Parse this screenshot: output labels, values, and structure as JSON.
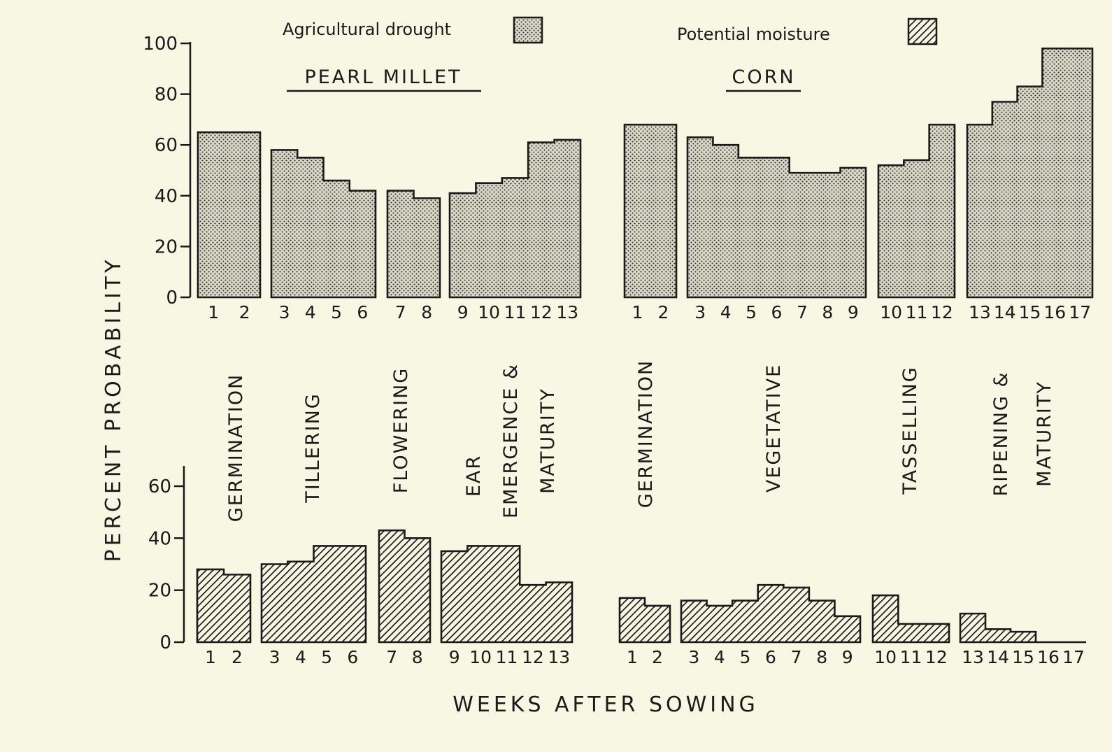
{
  "legend": [
    {
      "label": "Agricultural drought",
      "pattern": "dots"
    },
    {
      "label": "Potential moisture",
      "pattern": "hatch"
    }
  ],
  "colors": {
    "background": "#f7f7e3",
    "ink": "#1a1a1a",
    "dot_fill": "#d9d9c8"
  },
  "ylabel": "PERCENT PROBABILITY",
  "xlabel": "WEEKS AFTER SOWING",
  "crops": [
    {
      "name": "PEARL MILLET",
      "stages": [
        "GERMINATION",
        "TILLERING",
        "FLOWERING",
        "EAR EMERGENCE & MATURITY"
      ]
    },
    {
      "name": "CORN",
      "stages": [
        "GERMINATION",
        "VEGETATIVE",
        "TASSELLING",
        "RIPENING & MATURITY"
      ]
    }
  ],
  "chart_data": [
    {
      "type": "bar",
      "title": "Agricultural drought",
      "ylabel": "PERCENT PROBABILITY",
      "ylim": [
        0,
        100
      ],
      "yticks": [
        "0",
        "20",
        "40",
        "60",
        "80",
        "100"
      ],
      "series": [
        {
          "name": "PEARL MILLET",
          "x": [
            "1",
            "2",
            "3",
            "4",
            "5",
            "6",
            "7",
            "8",
            "9",
            "10",
            "11",
            "12",
            "13"
          ],
          "values": [
            65,
            65,
            58,
            55,
            46,
            42,
            42,
            39,
            41,
            45,
            47,
            61,
            62
          ]
        },
        {
          "name": "CORN",
          "x": [
            "1",
            "2",
            "3",
            "4",
            "5",
            "6",
            "7",
            "8",
            "9",
            "10",
            "11",
            "12",
            "13",
            "14",
            "15",
            "16",
            "17"
          ],
          "values": [
            68,
            68,
            63,
            60,
            55,
            55,
            49,
            49,
            51,
            52,
            54,
            68,
            68,
            77,
            83,
            98,
            98
          ]
        }
      ]
    },
    {
      "type": "bar",
      "title": "Potential moisture",
      "xlabel": "WEEKS AFTER SOWING",
      "ylim": [
        0,
        60
      ],
      "yticks": [
        "0",
        "20",
        "40",
        "60"
      ],
      "series": [
        {
          "name": "PEARL MILLET",
          "x": [
            "1",
            "2",
            "3",
            "4",
            "5",
            "6",
            "7",
            "8",
            "9",
            "10",
            "11",
            "12",
            "13"
          ],
          "values": [
            28,
            26,
            30,
            31,
            37,
            37,
            43,
            40,
            35,
            37,
            37,
            22,
            23
          ]
        },
        {
          "name": "CORN",
          "x": [
            "1",
            "2",
            "3",
            "4",
            "5",
            "6",
            "7",
            "8",
            "9",
            "10",
            "11",
            "12",
            "13",
            "14",
            "15",
            "16",
            "17"
          ],
          "values": [
            17,
            14,
            16,
            14,
            16,
            22,
            21,
            16,
            10,
            18,
            7,
            7,
            11,
            5,
            4,
            0,
            0
          ]
        }
      ]
    }
  ]
}
